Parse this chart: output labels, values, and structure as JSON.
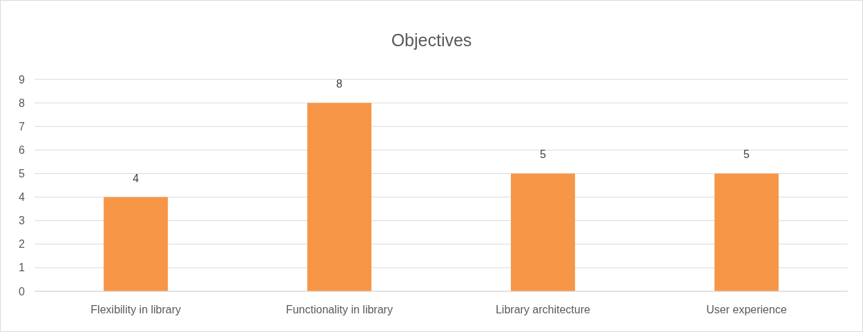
{
  "chart_data": {
    "type": "bar",
    "title": "Objectives",
    "categories": [
      "Flexibility in library",
      "Functionality in library",
      "Library architecture",
      "User experience"
    ],
    "values": [
      4,
      8,
      5,
      5
    ],
    "color": "#f79646",
    "ylim": [
      0,
      9
    ],
    "yticks": [
      0,
      1,
      2,
      3,
      4,
      5,
      6,
      7,
      8,
      9
    ],
    "grid": "y",
    "data_labels": true
  }
}
